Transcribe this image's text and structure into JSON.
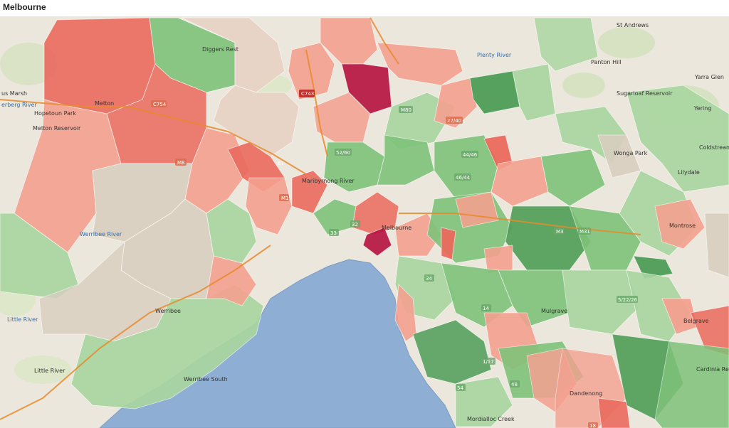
{
  "title": "Melbourne",
  "colors": {
    "land": "#ece7dc",
    "bay": "#8eaed3",
    "red_strong": "#b5123f",
    "red": "#ea6b5e",
    "salmon": "#f4a190",
    "neutral": "#d9cfc0",
    "green_light": "#a9d6a0",
    "green": "#7fc27a",
    "green_dark": "#4f9e58"
  },
  "places": [
    {
      "name": "St Andrews"
    },
    {
      "name": "Panton Hill"
    },
    {
      "name": "Yarra Glen"
    },
    {
      "name": "Sugarloaf Reservoir"
    },
    {
      "name": "Plenty River"
    },
    {
      "name": "Diggers Rest"
    },
    {
      "name": "Melton"
    },
    {
      "name": "Melton Reservoir"
    },
    {
      "name": "Hopetoun Park"
    },
    {
      "name": "Werribee River"
    },
    {
      "name": "Werribee"
    },
    {
      "name": "Werribee South"
    },
    {
      "name": "Little River"
    },
    {
      "name": "Little River"
    },
    {
      "name": "Lilydale"
    },
    {
      "name": "Montrose"
    },
    {
      "name": "Belgrave"
    },
    {
      "name": "Dandenong"
    },
    {
      "name": "Mordialloc Creek"
    },
    {
      "name": "Coldstream"
    },
    {
      "name": "Wonga Park"
    },
    {
      "name": "Melbourne"
    },
    {
      "name": "Maribyrnong River"
    },
    {
      "name": "Yering"
    },
    {
      "name": "Cardinia Reservoir"
    },
    {
      "name": "Mulgrave"
    },
    {
      "name": "us Marsh"
    },
    {
      "name": "erberg River"
    }
  ],
  "road_shields": [
    {
      "label": "C743"
    },
    {
      "label": "C754"
    },
    {
      "label": "M8"
    },
    {
      "label": "M80"
    },
    {
      "label": "M1"
    },
    {
      "label": "M3"
    },
    {
      "label": "M31"
    },
    {
      "label": "27/40"
    },
    {
      "label": "44/46"
    },
    {
      "label": "46/44"
    },
    {
      "label": "52/60"
    },
    {
      "label": "1/17"
    },
    {
      "label": "5/22/26"
    },
    {
      "label": "34"
    },
    {
      "label": "33"
    },
    {
      "label": "32"
    },
    {
      "label": "14"
    },
    {
      "label": "54"
    },
    {
      "label": "61"
    },
    {
      "label": "48"
    },
    {
      "label": "18"
    }
  ]
}
